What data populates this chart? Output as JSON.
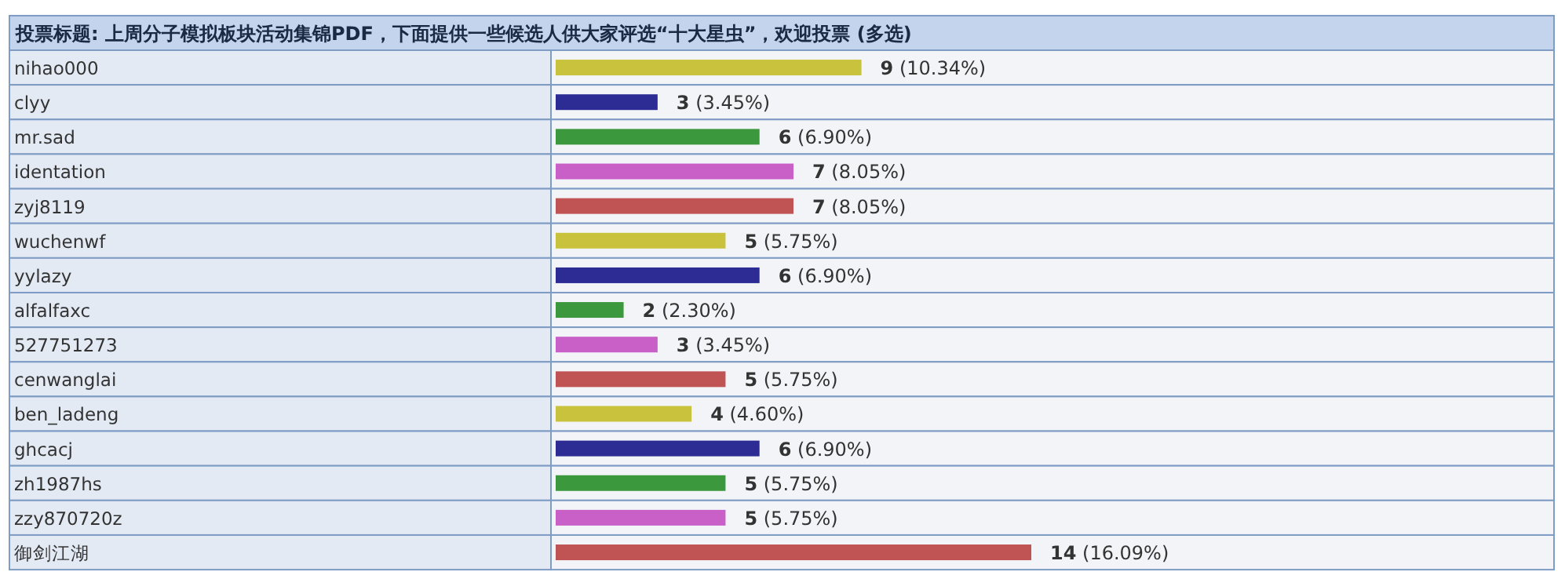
{
  "chart_data": {
    "type": "bar",
    "orientation": "horizontal",
    "title": "投票标题: 上周分子模拟板块活动集锦PDF，下面提供一些候选人供大家评选“十大星虫”，欢迎投票 (多选)",
    "categories": [
      "nihao000",
      "clyy",
      "mr.sad",
      "identation",
      "zyj8119",
      "wuchenwf",
      "yylazy",
      "alfalfaxc",
      "527751273",
      "cenwanglai",
      "ben_ladeng",
      "ghcacj",
      "zh1987hs",
      "zzy870720z",
      "御剑江湖"
    ],
    "values": [
      9,
      3,
      6,
      7,
      7,
      5,
      6,
      2,
      3,
      5,
      4,
      6,
      5,
      5,
      14
    ],
    "value_labels": [
      "9 (10.34%)",
      "3 (3.45%)",
      "6 (6.90%)",
      "7 (8.05%)",
      "7 (8.05%)",
      "5 (5.75%)",
      "6 (6.90%)",
      "2 (2.30%)",
      "3 (3.45%)",
      "5 (5.75%)",
      "4 (4.60%)",
      "6 (6.90%)",
      "5 (5.75%)",
      "5 (5.75%)",
      "14 (16.09%)"
    ],
    "colors": [
      "#c8c23c",
      "#2c2c94",
      "#3c983c",
      "#c860c8",
      "#c05454",
      "#c8c23c",
      "#2c2c94",
      "#3c983c",
      "#c860c8",
      "#c05454",
      "#c8c23c",
      "#2c2c94",
      "#3c983c",
      "#c860c8",
      "#c05454"
    ]
  }
}
